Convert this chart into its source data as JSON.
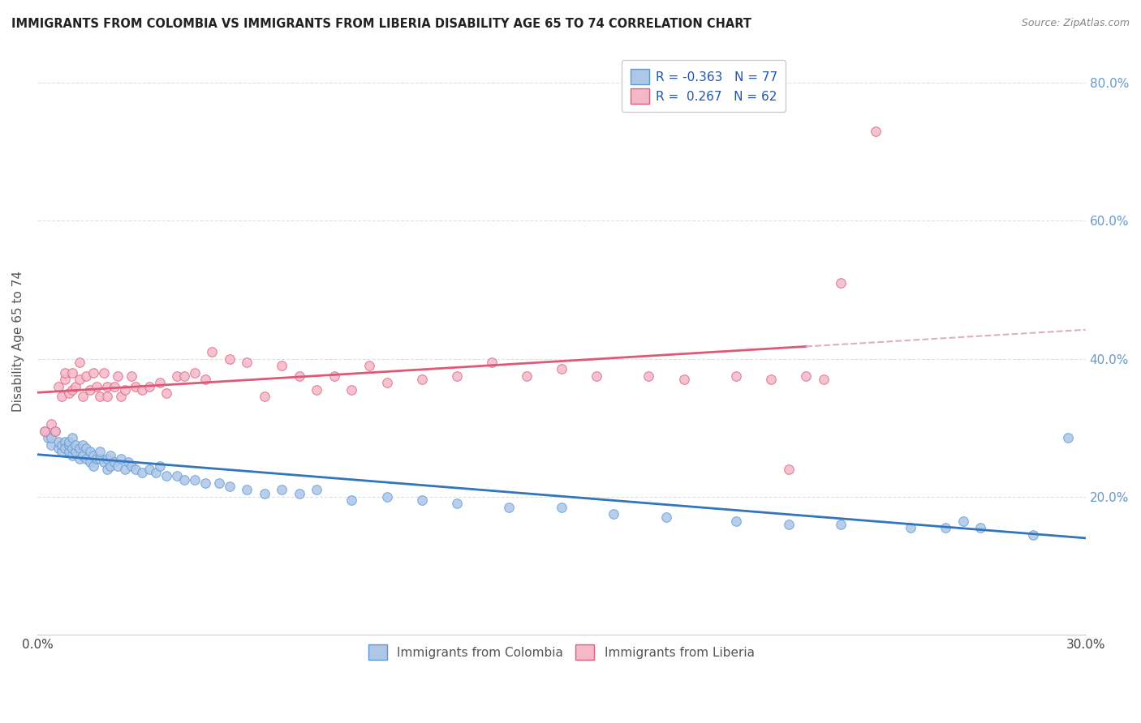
{
  "title": "IMMIGRANTS FROM COLOMBIA VS IMMIGRANTS FROM LIBERIA DISABILITY AGE 65 TO 74 CORRELATION CHART",
  "source": "Source: ZipAtlas.com",
  "ylabel": "Disability Age 65 to 74",
  "xlim": [
    0.0,
    0.3
  ],
  "ylim": [
    0.0,
    0.85
  ],
  "R_colombia": -0.363,
  "N_colombia": 77,
  "R_liberia": 0.267,
  "N_liberia": 62,
  "colombia_fill": "#aec6e8",
  "colombia_edge": "#5b9bd5",
  "liberia_fill": "#f4b8c8",
  "liberia_edge": "#e06080",
  "colombia_line_color": "#3375bb",
  "liberia_line_color": "#e05878",
  "dashed_line_color": "#dbb0c0",
  "background_color": "#ffffff",
  "grid_color": "#e0e0e0",
  "right_tick_color": "#6699cc",
  "colombia_scatter_x": [
    0.002,
    0.003,
    0.004,
    0.004,
    0.005,
    0.006,
    0.006,
    0.007,
    0.007,
    0.008,
    0.008,
    0.009,
    0.009,
    0.009,
    0.01,
    0.01,
    0.01,
    0.011,
    0.011,
    0.012,
    0.012,
    0.013,
    0.013,
    0.014,
    0.014,
    0.015,
    0.015,
    0.016,
    0.016,
    0.017,
    0.018,
    0.018,
    0.019,
    0.02,
    0.02,
    0.021,
    0.021,
    0.022,
    0.023,
    0.024,
    0.025,
    0.026,
    0.027,
    0.028,
    0.03,
    0.032,
    0.034,
    0.035,
    0.037,
    0.04,
    0.042,
    0.045,
    0.048,
    0.052,
    0.055,
    0.06,
    0.065,
    0.07,
    0.075,
    0.08,
    0.09,
    0.1,
    0.11,
    0.12,
    0.135,
    0.15,
    0.165,
    0.18,
    0.2,
    0.215,
    0.23,
    0.25,
    0.26,
    0.265,
    0.27,
    0.285,
    0.295
  ],
  "colombia_scatter_y": [
    0.295,
    0.285,
    0.275,
    0.285,
    0.295,
    0.27,
    0.28,
    0.265,
    0.275,
    0.28,
    0.27,
    0.265,
    0.275,
    0.28,
    0.26,
    0.27,
    0.285,
    0.265,
    0.275,
    0.255,
    0.27,
    0.26,
    0.275,
    0.255,
    0.27,
    0.25,
    0.265,
    0.245,
    0.26,
    0.255,
    0.255,
    0.265,
    0.25,
    0.24,
    0.255,
    0.245,
    0.26,
    0.25,
    0.245,
    0.255,
    0.24,
    0.25,
    0.245,
    0.24,
    0.235,
    0.24,
    0.235,
    0.245,
    0.23,
    0.23,
    0.225,
    0.225,
    0.22,
    0.22,
    0.215,
    0.21,
    0.205,
    0.21,
    0.205,
    0.21,
    0.195,
    0.2,
    0.195,
    0.19,
    0.185,
    0.185,
    0.175,
    0.17,
    0.165,
    0.16,
    0.16,
    0.155,
    0.155,
    0.165,
    0.155,
    0.145,
    0.285
  ],
  "liberia_scatter_x": [
    0.002,
    0.004,
    0.005,
    0.006,
    0.007,
    0.008,
    0.008,
    0.009,
    0.01,
    0.01,
    0.011,
    0.012,
    0.012,
    0.013,
    0.014,
    0.015,
    0.016,
    0.017,
    0.018,
    0.019,
    0.02,
    0.02,
    0.022,
    0.023,
    0.024,
    0.025,
    0.027,
    0.028,
    0.03,
    0.032,
    0.035,
    0.037,
    0.04,
    0.042,
    0.045,
    0.048,
    0.05,
    0.055,
    0.06,
    0.065,
    0.07,
    0.075,
    0.08,
    0.085,
    0.09,
    0.095,
    0.1,
    0.11,
    0.12,
    0.13,
    0.14,
    0.15,
    0.16,
    0.175,
    0.185,
    0.2,
    0.21,
    0.215,
    0.22,
    0.225,
    0.23,
    0.24
  ],
  "liberia_scatter_y": [
    0.295,
    0.305,
    0.295,
    0.36,
    0.345,
    0.37,
    0.38,
    0.35,
    0.355,
    0.38,
    0.36,
    0.37,
    0.395,
    0.345,
    0.375,
    0.355,
    0.38,
    0.36,
    0.345,
    0.38,
    0.345,
    0.36,
    0.36,
    0.375,
    0.345,
    0.355,
    0.375,
    0.36,
    0.355,
    0.36,
    0.365,
    0.35,
    0.375,
    0.375,
    0.38,
    0.37,
    0.41,
    0.4,
    0.395,
    0.345,
    0.39,
    0.375,
    0.355,
    0.375,
    0.355,
    0.39,
    0.365,
    0.37,
    0.375,
    0.395,
    0.375,
    0.385,
    0.375,
    0.375,
    0.37,
    0.375,
    0.37,
    0.24,
    0.375,
    0.37,
    0.51,
    0.73
  ]
}
